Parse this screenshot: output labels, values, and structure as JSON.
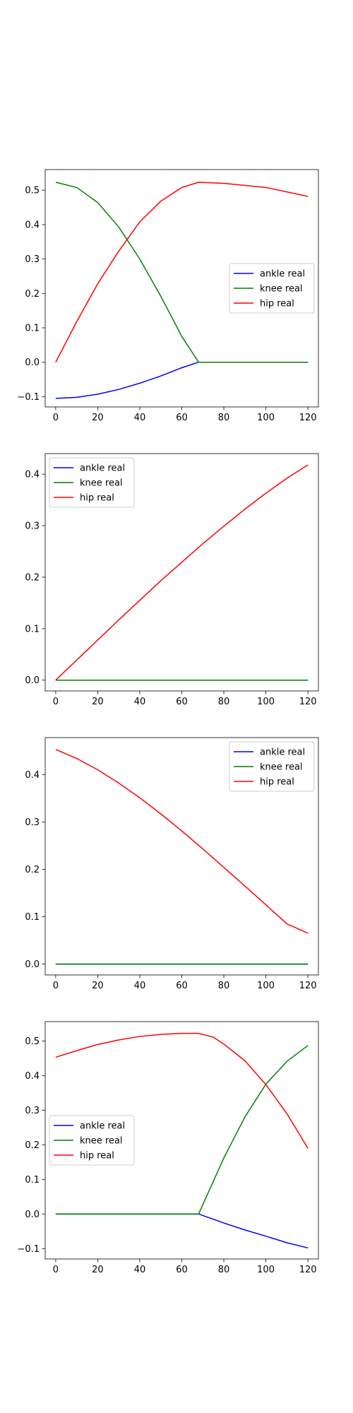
{
  "chart_data": [
    {
      "type": "line",
      "xlim": [
        -5,
        125
      ],
      "ylim": [
        -0.13,
        0.56
      ],
      "xticks": [
        0,
        20,
        40,
        60,
        80,
        100,
        120
      ],
      "yticks": [
        -0.1,
        0.0,
        0.1,
        0.2,
        0.3,
        0.4,
        0.5
      ],
      "ytick_labels": [
        "−0.1",
        "0.0",
        "0.1",
        "0.2",
        "0.3",
        "0.4",
        "0.5"
      ],
      "legend_position": "center-right",
      "series": [
        {
          "name": "ankle real",
          "color": "#0000ff",
          "x": [
            0,
            10,
            20,
            30,
            40,
            50,
            60,
            68,
            80,
            100,
            120
          ],
          "y": [
            -0.105,
            -0.102,
            -0.093,
            -0.079,
            -0.061,
            -0.04,
            -0.016,
            0.0,
            0.0,
            0.0,
            0.0
          ]
        },
        {
          "name": "knee real",
          "color": "#008000",
          "x": [
            0,
            10,
            20,
            30,
            40,
            50,
            60,
            68,
            80,
            100,
            120
          ],
          "y": [
            0.523,
            0.508,
            0.464,
            0.393,
            0.3,
            0.192,
            0.075,
            0.0,
            0.0,
            0.0,
            0.0
          ]
        },
        {
          "name": "hip real",
          "color": "#ff0000",
          "x": [
            0,
            10,
            20,
            30,
            40,
            50,
            60,
            68,
            80,
            100,
            120
          ],
          "y": [
            0.0,
            0.118,
            0.228,
            0.323,
            0.408,
            0.468,
            0.508,
            0.523,
            0.52,
            0.508,
            0.482
          ]
        }
      ]
    },
    {
      "type": "line",
      "xlim": [
        -5,
        125
      ],
      "ylim": [
        -0.021,
        0.44
      ],
      "xticks": [
        0,
        20,
        40,
        60,
        80,
        100,
        120
      ],
      "yticks": [
        0.0,
        0.1,
        0.2,
        0.3,
        0.4
      ],
      "ytick_labels": [
        "0.0",
        "0.1",
        "0.2",
        "0.3",
        "0.4"
      ],
      "legend_position": "upper-left",
      "series": [
        {
          "name": "ankle real",
          "color": "#0000ff",
          "x": [
            0,
            120
          ],
          "y": [
            0.0,
            0.0
          ]
        },
        {
          "name": "knee real",
          "color": "#008000",
          "x": [
            0,
            120
          ],
          "y": [
            0.0,
            0.0
          ]
        },
        {
          "name": "hip real",
          "color": "#ff0000",
          "x": [
            0,
            10,
            20,
            30,
            40,
            50,
            60,
            70,
            80,
            90,
            100,
            110,
            120
          ],
          "y": [
            0.0,
            0.039,
            0.078,
            0.117,
            0.155,
            0.193,
            0.229,
            0.265,
            0.299,
            0.332,
            0.363,
            0.392,
            0.418
          ]
        }
      ]
    },
    {
      "type": "line",
      "xlim": [
        -5,
        125
      ],
      "ylim": [
        -0.023,
        0.478
      ],
      "xticks": [
        0,
        20,
        40,
        60,
        80,
        100,
        120
      ],
      "yticks": [
        0.0,
        0.1,
        0.2,
        0.3,
        0.4
      ],
      "ytick_labels": [
        "0.0",
        "0.1",
        "0.2",
        "0.3",
        "0.4"
      ],
      "legend_position": "upper-right",
      "series": [
        {
          "name": "ankle real",
          "color": "#0000ff",
          "x": [
            0,
            120
          ],
          "y": [
            0.0,
            0.0
          ]
        },
        {
          "name": "knee real",
          "color": "#008000",
          "x": [
            0,
            120
          ],
          "y": [
            0.0,
            0.0
          ]
        },
        {
          "name": "hip real",
          "color": "#ff0000",
          "x": [
            0,
            10,
            20,
            30,
            40,
            50,
            60,
            70,
            80,
            90,
            100,
            110,
            120
          ],
          "y": [
            0.453,
            0.434,
            0.41,
            0.382,
            0.351,
            0.317,
            0.281,
            0.243,
            0.204,
            0.165,
            0.125,
            0.085,
            0.065
          ]
        }
      ]
    },
    {
      "type": "line",
      "xlim": [
        -5,
        125
      ],
      "ylim": [
        -0.13,
        0.556
      ],
      "xticks": [
        0,
        20,
        40,
        60,
        80,
        100,
        120
      ],
      "yticks": [
        -0.1,
        0.0,
        0.1,
        0.2,
        0.3,
        0.4,
        0.5
      ],
      "ytick_labels": [
        "−0.1",
        "0.0",
        "0.1",
        "0.2",
        "0.3",
        "0.4",
        "0.5"
      ],
      "legend_position": "center-left",
      "series": [
        {
          "name": "ankle real",
          "color": "#0000ff",
          "x": [
            0,
            68,
            80,
            90,
            100,
            110,
            120
          ],
          "y": [
            0.0,
            0.0,
            -0.026,
            -0.046,
            -0.064,
            -0.083,
            -0.098
          ]
        },
        {
          "name": "knee real",
          "color": "#008000",
          "x": [
            0,
            68,
            80,
            90,
            100,
            110,
            120
          ],
          "y": [
            0.0,
            0.0,
            0.162,
            0.28,
            0.375,
            0.441,
            0.487
          ]
        },
        {
          "name": "hip real",
          "color": "#ff0000",
          "x": [
            0,
            10,
            20,
            30,
            40,
            50,
            60,
            68,
            75,
            80,
            90,
            100,
            110,
            120
          ],
          "y": [
            0.453,
            0.472,
            0.49,
            0.503,
            0.513,
            0.519,
            0.522,
            0.522,
            0.511,
            0.491,
            0.443,
            0.374,
            0.29,
            0.19
          ]
        }
      ]
    }
  ]
}
